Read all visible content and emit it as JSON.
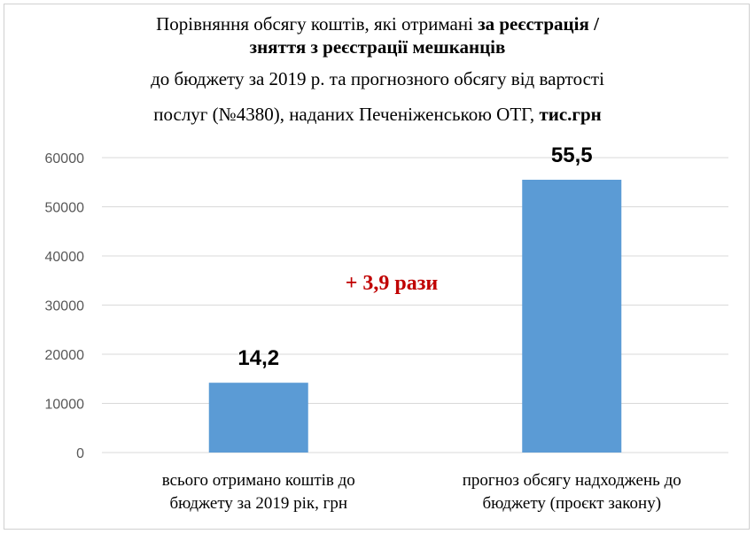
{
  "title": {
    "line1_plain": "Порівняння обсягу коштів, які отримані ",
    "line1_bold": "за реєстрація /",
    "line2_bold": "зняття з реєстрації мешканців",
    "line3": "до бюджету за 2019 р. та прогнозного обсягу від вартості",
    "line4_plain": "послуг (№4380), наданих Печеніженською ОТГ, ",
    "line4_bold": "тис.грн"
  },
  "colors": {
    "bar": "#5b9bd5",
    "annotation": "#c00000",
    "grid": "#d9d9d9"
  },
  "chart_data": {
    "type": "bar",
    "categories": [
      [
        "всього отримано коштів до",
        "бюджету за 2019 рік, грн"
      ],
      [
        "прогноз обсягу надходжень до",
        "бюджету (проєкт закону)"
      ]
    ],
    "values": [
      14200,
      55500
    ],
    "data_labels": [
      "14,2",
      "55,5"
    ],
    "yticks": [
      "0",
      "10000",
      "20000",
      "30000",
      "40000",
      "50000",
      "60000"
    ],
    "ylim": [
      0,
      60000
    ],
    "grid": true,
    "annotation": "+ 3,9 рази"
  }
}
